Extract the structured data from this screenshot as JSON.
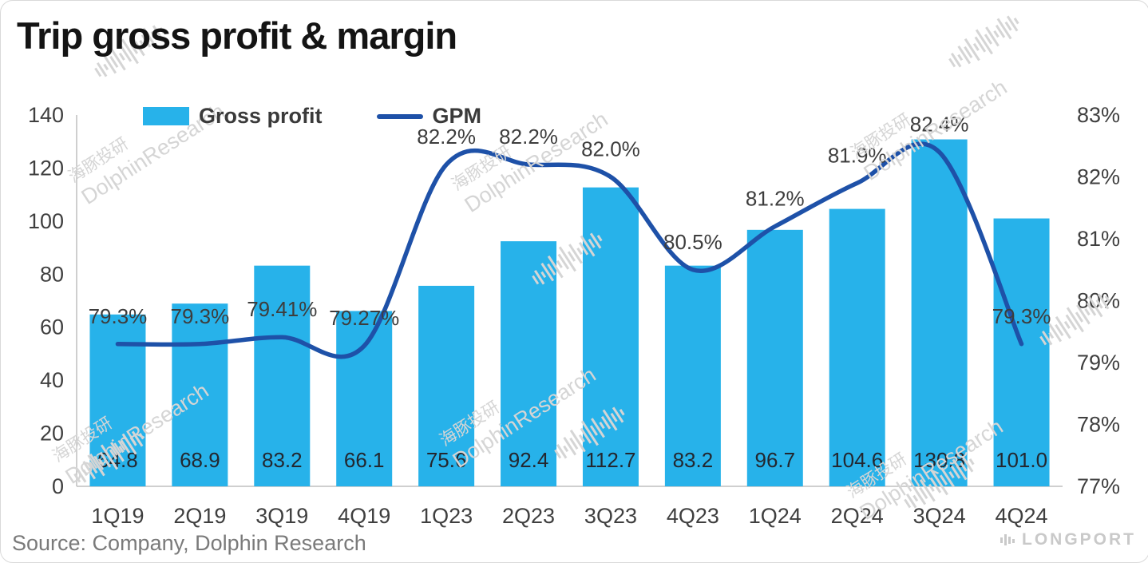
{
  "title": "Trip gross profit & margin",
  "source_note": "Source: Company, Dolphin Research",
  "brand": "LONGPORT",
  "watermark": {
    "cn": "海豚投研",
    "en": "DolphinResearch"
  },
  "legend": {
    "items": [
      {
        "label": "Gross profit",
        "swatch": "bar"
      },
      {
        "label": "GPM",
        "swatch": "line"
      }
    ]
  },
  "colors": {
    "bar": "#27B2EA",
    "line": "#1E51A8",
    "axis_text": "#3F3F3F",
    "bar_label": "#23272F",
    "gpm_label": "#3D3D3D",
    "axis_line": "#BFBFBF",
    "source_text": "#7A7A7A",
    "brand_text": "#C9C9C9",
    "watermark": "#D5D5D5"
  },
  "chart_data": {
    "type": "combo (bar + line)",
    "title": "Trip gross profit & margin",
    "categories": [
      "1Q19",
      "2Q19",
      "3Q19",
      "4Q19",
      "1Q23",
      "2Q23",
      "3Q23",
      "4Q23",
      "1Q24",
      "2Q24",
      "3Q24",
      "4Q24"
    ],
    "series": [
      {
        "name": "Gross profit",
        "type": "bar",
        "axis": "left",
        "values": [
          64.8,
          68.9,
          83.2,
          66.1,
          75.6,
          92.4,
          112.7,
          83.2,
          96.7,
          104.6,
          130.8,
          101.0
        ],
        "labels": [
          "64.8",
          "68.9",
          "83.2",
          "66.1",
          "75.6",
          "92.4",
          "112.7",
          "83.2",
          "96.7",
          "104.6",
          "130.8",
          "101.0"
        ]
      },
      {
        "name": "GPM",
        "type": "line",
        "axis": "right",
        "values": [
          79.3,
          79.3,
          79.41,
          79.27,
          82.2,
          82.2,
          82.0,
          80.5,
          81.2,
          81.9,
          82.4,
          79.3
        ],
        "labels": [
          "79.3%",
          "79.3%",
          "79.41%",
          "79.27%",
          "82.2%",
          "82.2%",
          "82.0%",
          "80.5%",
          "81.2%",
          "81.9%",
          "82.4%",
          "79.3%"
        ]
      }
    ],
    "left_axis": {
      "min": 0,
      "max": 140,
      "step": 20,
      "tick_labels": [
        "0",
        "20",
        "40",
        "60",
        "80",
        "100",
        "120",
        "140"
      ]
    },
    "right_axis": {
      "min": 77,
      "max": 83,
      "step": 1,
      "tick_labels": [
        "77%",
        "78%",
        "79%",
        "80%",
        "81%",
        "82%",
        "83%"
      ]
    },
    "grid": false,
    "legend_position": "top-left-inside",
    "line_style": "smooth"
  }
}
